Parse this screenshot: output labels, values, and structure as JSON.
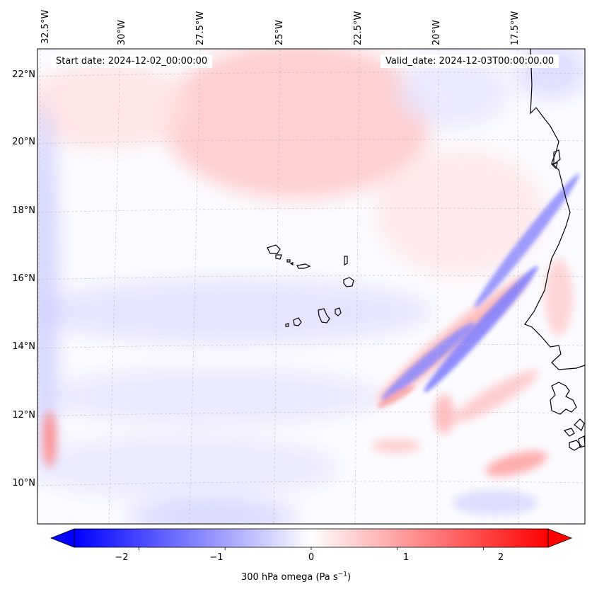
{
  "map": {
    "title_start": "Start date: 2024-12-02_00:00:00",
    "title_valid": "Valid_date: 2024-12-03T00:00:00.00",
    "extent": {
      "lon_min": -33.0,
      "lon_max": -15.2,
      "lat_min": 8.8,
      "lat_max": 22.8
    },
    "lon_labels": [
      {
        "value": -32.5,
        "text": "32.5°W"
      },
      {
        "value": -30.0,
        "text": "30°W"
      },
      {
        "value": -27.5,
        "text": "27.5°W"
      },
      {
        "value": -25.0,
        "text": "25°W"
      },
      {
        "value": -22.5,
        "text": "22.5°W"
      },
      {
        "value": -20.0,
        "text": "20°W"
      },
      {
        "value": -17.5,
        "text": "17.5°W"
      }
    ],
    "lat_labels": [
      {
        "value": 22,
        "text": "22°N"
      },
      {
        "value": 20,
        "text": "20°N"
      },
      {
        "value": 18,
        "text": "18°N"
      },
      {
        "value": 16,
        "text": "16°N"
      },
      {
        "value": 14,
        "text": "14°N"
      },
      {
        "value": 12,
        "text": "12°N"
      },
      {
        "value": 10,
        "text": "10°N"
      }
    ]
  },
  "colorbar": {
    "label_main": "300 hPa omega (Pa s",
    "label_exp": "−1",
    "label_close": ")",
    "range": [
      -2.75,
      2.75
    ],
    "ticks": [
      {
        "value": -2,
        "text": "−2"
      },
      {
        "value": -1,
        "text": "−1"
      },
      {
        "value": 0,
        "text": "0"
      },
      {
        "value": 1,
        "text": "1"
      },
      {
        "value": 2,
        "text": "2"
      }
    ],
    "colors": {
      "low": "#0000ff",
      "mid": "#ffffff",
      "high": "#ff0000"
    }
  },
  "features": [
    {
      "name": "ascent-band-coastal",
      "value": -1.3
    },
    {
      "name": "ascent-band-central",
      "value": -1.4
    },
    {
      "name": "ascent-band-southwest",
      "value": -1.2
    },
    {
      "name": "subsidence-band-between",
      "value": 0.9
    },
    {
      "name": "subsidence-north",
      "value": 0.45
    },
    {
      "name": "weak-ascent-belt",
      "value": -0.25
    },
    {
      "name": "subsidence-southwest-spot",
      "value": 1.1
    },
    {
      "name": "subsidence-south-coast",
      "value": 0.8
    },
    {
      "name": "ascent-west-edge",
      "value": -0.5
    }
  ]
}
